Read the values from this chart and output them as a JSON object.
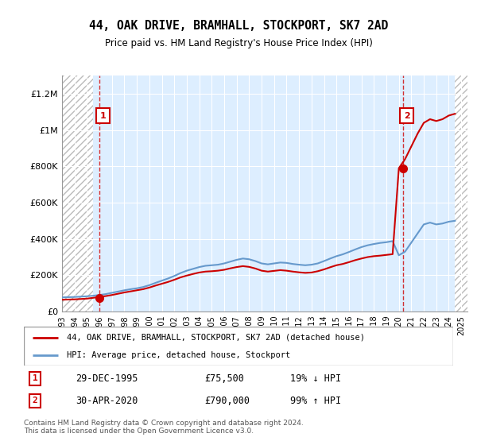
{
  "title": "44, OAK DRIVE, BRAMHALL, STOCKPORT, SK7 2AD",
  "subtitle": "Price paid vs. HM Land Registry's House Price Index (HPI)",
  "xlim_start": 1993,
  "xlim_end": 2025.5,
  "ylim": [
    0,
    1300000
  ],
  "yticks": [
    0,
    200000,
    400000,
    600000,
    800000,
    1000000,
    1200000
  ],
  "ytick_labels": [
    "£0",
    "£200K",
    "£400K",
    "£600K",
    "£800K",
    "£1M",
    "£1.2M"
  ],
  "xticks": [
    1993,
    1994,
    1995,
    1996,
    1997,
    1998,
    1999,
    2000,
    2001,
    2002,
    2003,
    2004,
    2005,
    2006,
    2007,
    2008,
    2009,
    2010,
    2011,
    2012,
    2013,
    2014,
    2015,
    2016,
    2017,
    2018,
    2019,
    2020,
    2021,
    2022,
    2023,
    2024,
    2025
  ],
  "hpi_color": "#6699cc",
  "price_color": "#cc0000",
  "marker_color": "#cc0000",
  "annotation_box_color": "#cc0000",
  "sale1_x": 1995.99,
  "sale1_y": 75500,
  "sale1_label": "1",
  "sale1_date": "29-DEC-1995",
  "sale1_price": "£75,500",
  "sale1_hpi": "19% ↓ HPI",
  "sale2_x": 2020.33,
  "sale2_y": 790000,
  "sale2_label": "2",
  "sale2_date": "30-APR-2020",
  "sale2_price": "£790,000",
  "sale2_hpi": "99% ↑ HPI",
  "legend_line1": "44, OAK DRIVE, BRAMHALL, STOCKPORT, SK7 2AD (detached house)",
  "legend_line2": "HPI: Average price, detached house, Stockport",
  "footer": "Contains HM Land Registry data © Crown copyright and database right 2024.\nThis data is licensed under the Open Government Licence v3.0.",
  "hpi_data_x": [
    1993,
    1993.5,
    1994,
    1994.5,
    1995,
    1995.5,
    1996,
    1996.5,
    1997,
    1997.5,
    1998,
    1998.5,
    1999,
    1999.5,
    2000,
    2000.5,
    2001,
    2001.5,
    2002,
    2002.5,
    2003,
    2003.5,
    2004,
    2004.5,
    2005,
    2005.5,
    2006,
    2006.5,
    2007,
    2007.5,
    2008,
    2008.5,
    2009,
    2009.5,
    2010,
    2010.5,
    2011,
    2011.5,
    2012,
    2012.5,
    2013,
    2013.5,
    2014,
    2014.5,
    2015,
    2015.5,
    2016,
    2016.5,
    2017,
    2017.5,
    2018,
    2018.5,
    2019,
    2019.5,
    2020,
    2020.5,
    2021,
    2021.5,
    2022,
    2022.5,
    2023,
    2023.5,
    2024,
    2024.5
  ],
  "hpi_data_y": [
    78000,
    79000,
    80000,
    82000,
    84000,
    87000,
    91000,
    96000,
    103000,
    110000,
    117000,
    123000,
    128000,
    135000,
    145000,
    158000,
    170000,
    182000,
    196000,
    212000,
    225000,
    235000,
    245000,
    252000,
    255000,
    258000,
    265000,
    275000,
    285000,
    292000,
    288000,
    278000,
    265000,
    260000,
    265000,
    270000,
    268000,
    262000,
    258000,
    255000,
    258000,
    265000,
    278000,
    292000,
    305000,
    315000,
    328000,
    342000,
    355000,
    365000,
    372000,
    378000,
    382000,
    388000,
    310000,
    330000,
    380000,
    430000,
    480000,
    490000,
    480000,
    485000,
    495000,
    500000
  ],
  "price_data_x": [
    1993,
    1993.5,
    1994,
    1994.5,
    1995,
    1995.5,
    1996,
    1996.5,
    1997,
    1997.5,
    1998,
    1998.5,
    1999,
    1999.5,
    2000,
    2000.5,
    2001,
    2001.5,
    2002,
    2002.5,
    2003,
    2003.5,
    2004,
    2004.5,
    2005,
    2005.5,
    2006,
    2006.5,
    2007,
    2007.5,
    2008,
    2008.5,
    2009,
    2009.5,
    2010,
    2010.5,
    2011,
    2011.5,
    2012,
    2012.5,
    2013,
    2013.5,
    2014,
    2014.5,
    2015,
    2015.5,
    2016,
    2016.5,
    2017,
    2017.5,
    2018,
    2018.5,
    2019,
    2019.5,
    2020,
    2020.5,
    2021,
    2021.5,
    2022,
    2022.5,
    2023,
    2023.5,
    2024,
    2024.5
  ],
  "price_data_y": [
    65000,
    66000,
    67000,
    69000,
    71000,
    75500,
    80000,
    85000,
    91000,
    98000,
    105000,
    111000,
    117000,
    123000,
    132000,
    143000,
    153000,
    163000,
    175000,
    188000,
    198000,
    207000,
    215000,
    220000,
    222000,
    225000,
    230000,
    238000,
    245000,
    250000,
    246000,
    237000,
    225000,
    220000,
    224000,
    228000,
    225000,
    220000,
    216000,
    213000,
    215000,
    222000,
    232000,
    244000,
    255000,
    262000,
    272000,
    283000,
    292000,
    300000,
    305000,
    308000,
    312000,
    316000,
    790000,
    840000,
    910000,
    980000,
    1040000,
    1060000,
    1050000,
    1060000,
    1080000,
    1090000
  ],
  "hatch_left_end": 1995.5,
  "hatch_right_start": 2024.5
}
